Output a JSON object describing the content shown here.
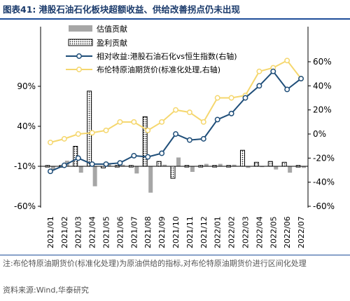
{
  "figure": {
    "label": "图表41:",
    "title": "港股石油石化板块超额收益、供给改善拐点仍未出现"
  },
  "note": "注:布伦特原油期货价(标准化处理)为原油供给的指标,对布伦特原油期货价进行区间化处理",
  "source": "资料来源:Wind,华泰研究",
  "colors": {
    "valuation_bar": "#a6a6a6",
    "profit_bar_stroke": "#000000",
    "excess_line": "#1f4e79",
    "brent_line": "#f5d76e",
    "axis": "#000000"
  },
  "chart_data": {
    "type": "bar+line",
    "categories": [
      "2021/01",
      "2021/02",
      "2021/03",
      "2021/04",
      "2021/05",
      "2021/06",
      "2021/07",
      "2021/08",
      "2021/09",
      "2021/10",
      "2021/11",
      "2021/12",
      "2022/01",
      "2022/02",
      "2022/03",
      "2022/04",
      "2022/05",
      "2022/06",
      "2022/07"
    ],
    "left_axis": {
      "ticks": [
        "90%",
        "40%",
        "-10%",
        "-60%"
      ],
      "tick_values": [
        90,
        40,
        -10,
        -60
      ],
      "ylim": [
        -60,
        115
      ]
    },
    "right_axis": {
      "ticks": [
        "60%",
        "40%",
        "20%",
        "0%",
        "-20%",
        "-40%",
        "-60%"
      ],
      "tick_values": [
        60,
        40,
        20,
        0,
        -20,
        -40,
        -60
      ],
      "ylim": [
        -60,
        60
      ]
    },
    "series": [
      {
        "name": "估值贡献",
        "type": "bar",
        "axis": "left",
        "style": "solid-gray",
        "values": [
          -5,
          7,
          -8,
          -25,
          4,
          2,
          -9,
          -33,
          2,
          11,
          -7,
          3,
          3,
          2,
          -2,
          -1,
          -4,
          -8,
          -2
        ]
      },
      {
        "name": "盈利贡献",
        "type": "bar",
        "axis": "left",
        "style": "dotted",
        "values": [
          0,
          0,
          25,
          94,
          -2,
          0,
          0,
          62,
          6,
          -15,
          0,
          0,
          0,
          0,
          20,
          5,
          6,
          5,
          0
        ]
      },
      {
        "name": "相对收益:港股石油石化vs恒生指数(右轴)",
        "type": "line",
        "axis": "right",
        "marker": "circle",
        "values": [
          -31,
          -26,
          -20,
          -25,
          -25,
          -24,
          -18,
          -19,
          -16,
          0,
          -5,
          -4,
          12,
          17,
          30,
          40,
          52,
          37,
          46
        ]
      },
      {
        "name": "布伦特原油期货价(标准化处理,右轴)",
        "type": "line",
        "axis": "right",
        "marker": "circle",
        "values": [
          -7,
          -4,
          0,
          1,
          3,
          10,
          10,
          3,
          10,
          20,
          18,
          10,
          30,
          30,
          32,
          52,
          55,
          61,
          46
        ]
      }
    ],
    "legend_placement": "top-center"
  }
}
